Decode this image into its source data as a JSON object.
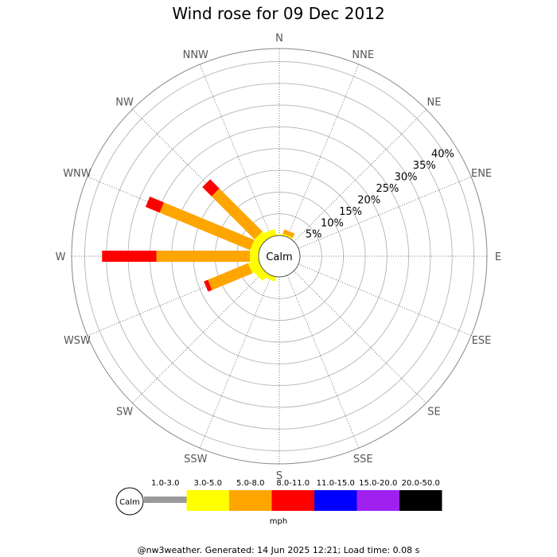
{
  "chart_data": {
    "type": "wind-rose",
    "title": "Wind rose for 09 Dec 2012",
    "calm_label": "Calm",
    "directions": [
      "N",
      "NNE",
      "NE",
      "ENE",
      "E",
      "ESE",
      "SE",
      "SSE",
      "S",
      "SSW",
      "SW",
      "WSW",
      "W",
      "WNW",
      "NW",
      "NNW"
    ],
    "radial_ticks": [
      5,
      10,
      15,
      20,
      25,
      30,
      35,
      40
    ],
    "radial_tick_labels": [
      "5%",
      "10%",
      "15%",
      "20%",
      "25%",
      "30%",
      "35%",
      "40%"
    ],
    "rmax": 43,
    "unit": "mph",
    "bins": [
      {
        "label": "1.0-3.0",
        "color": "#999999"
      },
      {
        "label": "3.0-5.0",
        "color": "#ffff00"
      },
      {
        "label": "5.0-8.0",
        "color": "#ffa500"
      },
      {
        "label": "8.0-11.0",
        "color": "#ff0000"
      },
      {
        "label": "11.0-15.0",
        "color": "#0000ff"
      },
      {
        "label": "15.0-20.0",
        "color": "#a020f0"
      },
      {
        "label": "20.0-50.0",
        "color": "#000000"
      }
    ],
    "stacks": [
      {
        "direction": "W",
        "segments": [
          0,
          2.0,
          21.5,
          12.5,
          0,
          0,
          0
        ]
      },
      {
        "direction": "WNW",
        "segments": [
          0,
          2.0,
          22.5,
          3.5,
          0,
          0,
          0
        ]
      },
      {
        "direction": "NW",
        "segments": [
          0,
          2.0,
          14.0,
          3.0,
          0,
          0,
          0
        ]
      },
      {
        "direction": "NNW",
        "segments": [
          0,
          1.5,
          0,
          0,
          0,
          0,
          0
        ]
      },
      {
        "direction": "N",
        "segments": [
          0,
          0.3,
          0,
          0,
          0,
          0,
          0
        ]
      },
      {
        "direction": "NNE",
        "segments": [
          0,
          0.4,
          1.0,
          0,
          0,
          0,
          0
        ]
      },
      {
        "direction": "WSW",
        "segments": [
          0,
          2.5,
          10.0,
          1.0,
          0,
          0,
          0
        ]
      },
      {
        "direction": "SW",
        "segments": [
          0,
          2.0,
          0,
          0,
          0,
          0,
          0
        ]
      },
      {
        "direction": "SSW",
        "segments": [
          0,
          1.0,
          0,
          0,
          0,
          0,
          0
        ]
      }
    ]
  },
  "footer": "@nw3weather. Generated: 14 Jun 2025 12:21; Load time: 0.08 s"
}
